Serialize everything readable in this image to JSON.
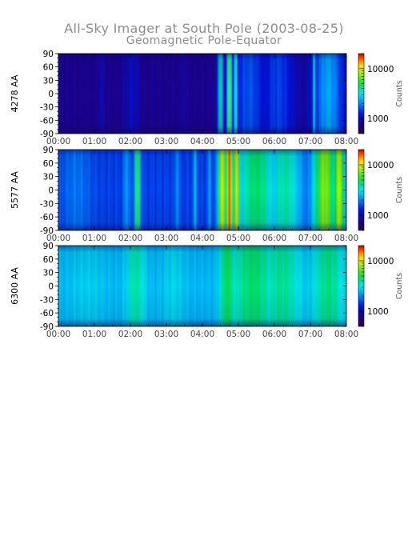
{
  "header": {
    "title": "All-Sky Imager at South Pole (2003-08-25)",
    "subtitle": "Geomagnetic Pole-Equator"
  },
  "chart_data": [
    {
      "type": "heatmap",
      "ylabel": "4278 AA",
      "xlabel": "",
      "x_ticks": [
        "00:00",
        "01:00",
        "02:00",
        "03:00",
        "04:00",
        "05:00",
        "06:00",
        "07:00",
        "08:00"
      ],
      "y_ticks": [
        90,
        60,
        30,
        0,
        -30,
        -60,
        -90
      ],
      "ylim": [
        -90,
        90
      ],
      "xlim_hours": [
        0,
        8
      ],
      "colorbar": {
        "label": "Counts",
        "scale": "log",
        "ticks": [
          "10000",
          "1000"
        ],
        "range": [
          500,
          20000
        ]
      },
      "background_level": 0.12,
      "bands": [
        {
          "t": 1.2,
          "w": 0.08,
          "v": 0.18
        },
        {
          "t": 2.05,
          "w": 0.2,
          "v": 0.2
        },
        {
          "t": 3.5,
          "w": 0.06,
          "v": 0.16
        },
        {
          "t": 4.5,
          "w": 0.07,
          "v": 0.6
        },
        {
          "t": 4.75,
          "w": 0.08,
          "v": 0.68
        },
        {
          "t": 4.92,
          "w": 0.06,
          "v": 0.55
        },
        {
          "t": 5.3,
          "w": 0.5,
          "v": 0.32
        },
        {
          "t": 6.1,
          "w": 0.5,
          "v": 0.3
        },
        {
          "t": 7.1,
          "w": 0.05,
          "v": 0.5
        },
        {
          "t": 7.5,
          "w": 0.45,
          "v": 0.42
        }
      ]
    },
    {
      "type": "heatmap",
      "ylabel": "5577 AA",
      "xlabel": "",
      "x_ticks": [
        "00:00",
        "01:00",
        "02:00",
        "03:00",
        "04:00",
        "05:00",
        "06:00",
        "07:00",
        "08:00"
      ],
      "y_ticks": [
        90,
        60,
        30,
        0,
        -30,
        -60,
        -90
      ],
      "ylim": [
        -90,
        90
      ],
      "xlim_hours": [
        0,
        8
      ],
      "colorbar": {
        "label": "Counts",
        "scale": "log",
        "ticks": [
          "10000",
          "1000"
        ],
        "range": [
          500,
          20000
        ]
      },
      "background_level": 0.3,
      "bands": [
        {
          "t": 0.5,
          "w": 0.4,
          "v": 0.36
        },
        {
          "t": 1.9,
          "w": 0.08,
          "v": 0.42
        },
        {
          "t": 2.2,
          "w": 0.08,
          "v": 0.65
        },
        {
          "t": 3.3,
          "w": 0.05,
          "v": 0.42
        },
        {
          "t": 3.8,
          "w": 0.05,
          "v": 0.45
        },
        {
          "t": 4.2,
          "w": 0.05,
          "v": 0.42
        },
        {
          "t": 4.55,
          "w": 0.12,
          "v": 0.8
        },
        {
          "t": 4.75,
          "w": 0.1,
          "v": 0.92
        },
        {
          "t": 4.95,
          "w": 0.1,
          "v": 0.82
        },
        {
          "t": 5.5,
          "w": 0.6,
          "v": 0.6
        },
        {
          "t": 6.3,
          "w": 0.5,
          "v": 0.55
        },
        {
          "t": 6.7,
          "w": 0.15,
          "v": 0.4
        },
        {
          "t": 7.4,
          "w": 0.35,
          "v": 0.72
        },
        {
          "t": 7.8,
          "w": 0.15,
          "v": 0.78
        }
      ]
    },
    {
      "type": "heatmap",
      "ylabel": "6300 AA",
      "xlabel": "",
      "x_ticks": [
        "00:00",
        "01:00",
        "02:00",
        "03:00",
        "04:00",
        "05:00",
        "06:00",
        "07:00",
        "08:00"
      ],
      "y_ticks": [
        90,
        60,
        30,
        0,
        -30,
        -60,
        -90
      ],
      "ylim": [
        -90,
        90
      ],
      "xlim_hours": [
        0,
        8
      ],
      "colorbar": {
        "label": "Counts",
        "scale": "log",
        "ticks": [
          "10000",
          "1000"
        ],
        "range": [
          500,
          20000
        ]
      },
      "background_level": 0.44,
      "bands": [
        {
          "t": 0.8,
          "w": 0.5,
          "v": 0.47
        },
        {
          "t": 2.15,
          "w": 0.25,
          "v": 0.55
        },
        {
          "t": 3.2,
          "w": 0.3,
          "v": 0.48
        },
        {
          "t": 4.7,
          "w": 0.2,
          "v": 0.62
        },
        {
          "t": 5.4,
          "w": 0.6,
          "v": 0.6
        },
        {
          "t": 6.2,
          "w": 0.5,
          "v": 0.57
        },
        {
          "t": 7.5,
          "w": 0.4,
          "v": 0.58
        }
      ]
    }
  ]
}
